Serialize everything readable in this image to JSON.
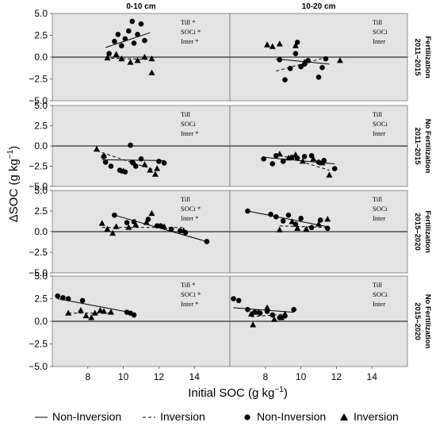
{
  "chart_data": {
    "type": "scatter",
    "xlabel": "Initial SOC (g kg",
    "xlabel_sup": "−1",
    "xlabel_end": ")",
    "ylabel": "ΔSOC (g kg",
    "ylabel_sup": "−1",
    "ylabel_end": ")",
    "xlim": [
      6,
      16
    ],
    "ylim": [
      -5.0,
      5.0
    ],
    "x_ticks": [
      "8",
      "10",
      "12",
      "14"
    ],
    "y_ticks": [
      "5.0",
      "2.5",
      "0.0",
      "−2.5",
      "−5.0"
    ],
    "columns": [
      "0-10 cm",
      "10-20 cm"
    ],
    "rows": [
      {
        "period": "2011–2015",
        "treatment": "Fertilization"
      },
      {
        "period": "2011–2015",
        "treatment": "No Fertilization"
      },
      {
        "period": "2015–2020",
        "treatment": "Fertilization"
      },
      {
        "period": "2015–2020",
        "treatment": "No Fertilization"
      }
    ],
    "legend": {
      "line_noninv": "Non-Inversion",
      "line_inv": "Inversion",
      "pt_noninv": "Non-Inversion",
      "pt_inv": "Inversion",
      "position": "bottom"
    },
    "panels": [
      {
        "row": 0,
        "col": 0,
        "stats": [
          "Till *",
          "SOCi *",
          "Inter *"
        ],
        "noninv_points": [
          [
            9.2,
            0.4
          ],
          [
            9.5,
            1.8
          ],
          [
            9.7,
            2.6
          ],
          [
            9.9,
            1.3
          ],
          [
            10.1,
            2.1
          ],
          [
            10.3,
            3.0
          ],
          [
            10.5,
            4.1
          ],
          [
            10.6,
            1.6
          ],
          [
            10.8,
            2.6
          ],
          [
            11.0,
            3.8
          ],
          [
            11.2,
            1.9
          ]
        ],
        "noninv_line": [
          [
            9.0,
            1.1
          ],
          [
            11.5,
            2.8
          ]
        ],
        "inv_points": [
          [
            9.1,
            -0.1
          ],
          [
            9.6,
            0.3
          ],
          [
            9.9,
            -0.2
          ],
          [
            10.4,
            -0.6
          ],
          [
            10.8,
            -0.4
          ],
          [
            11.2,
            0.0
          ],
          [
            11.6,
            -0.2
          ],
          [
            11.6,
            -1.8
          ]
        ],
        "inv_line": [
          [
            9.0,
            -0.1
          ],
          [
            11.7,
            -0.3
          ]
        ]
      },
      {
        "row": 0,
        "col": 1,
        "stats": [
          "Till",
          "SOCi",
          "Inter"
        ],
        "noninv_points": [
          [
            8.8,
            -0.3
          ],
          [
            9.1,
            -2.6
          ],
          [
            9.4,
            -1.3
          ],
          [
            9.7,
            0.4
          ],
          [
            9.8,
            1.7
          ],
          [
            10.0,
            -1.1
          ],
          [
            10.2,
            -0.8
          ],
          [
            10.4,
            -0.4
          ],
          [
            11.0,
            -2.3
          ],
          [
            11.2,
            -1.2
          ],
          [
            11.4,
            -0.2
          ]
        ],
        "noninv_line": [
          [
            8.6,
            -0.2
          ],
          [
            11.6,
            -0.8
          ]
        ],
        "inv_points": [
          [
            8.1,
            1.4
          ],
          [
            8.4,
            1.2
          ],
          [
            8.8,
            1.5
          ],
          [
            9.7,
            1.3
          ],
          [
            10.2,
            -0.6
          ],
          [
            12.2,
            -0.4
          ]
        ],
        "inv_line": [
          [
            8.6,
            -1.6
          ],
          [
            11.3,
            -0.1
          ]
        ]
      },
      {
        "row": 1,
        "col": 0,
        "stats": [
          "Till",
          "SOCi",
          "Inter *"
        ],
        "noninv_points": [
          [
            8.9,
            -1.3
          ],
          [
            9.0,
            -2.0
          ],
          [
            9.3,
            -2.5
          ],
          [
            9.8,
            -3.0
          ],
          [
            10.1,
            -3.2
          ],
          [
            10.4,
            0.1
          ],
          [
            10.5,
            -2.0
          ],
          [
            10.7,
            -2.5
          ],
          [
            11.0,
            -1.6
          ],
          [
            12.0,
            -1.9
          ],
          [
            12.3,
            -2.1
          ]
        ],
        "noninv_line": [
          [
            8.8,
            -1.7
          ],
          [
            12.3,
            -1.8
          ]
        ],
        "inv_points": [
          [
            8.5,
            -0.4
          ],
          [
            8.9,
            -1.2
          ],
          [
            10.0,
            -3.1
          ],
          [
            10.6,
            -2.1
          ],
          [
            11.2,
            -2.3
          ],
          [
            11.5,
            -3.0
          ],
          [
            11.8,
            -3.5
          ],
          [
            11.9,
            -2.8
          ]
        ],
        "inv_line": [
          [
            8.5,
            -0.6
          ],
          [
            11.8,
            -3.0
          ]
        ]
      },
      {
        "row": 1,
        "col": 1,
        "stats": [
          "Till",
          "SOCi",
          "Inter"
        ],
        "noninv_points": [
          [
            7.9,
            -1.6
          ],
          [
            8.4,
            -2.2
          ],
          [
            8.6,
            -1.2
          ],
          [
            9.0,
            -1.9
          ],
          [
            9.5,
            -1.4
          ],
          [
            9.8,
            -1.5
          ],
          [
            10.2,
            -1.3
          ],
          [
            10.6,
            -1.2
          ],
          [
            11.0,
            -2.0
          ],
          [
            11.3,
            -1.8
          ],
          [
            11.9,
            -2.8
          ]
        ],
        "noninv_line": [
          [
            7.9,
            -1.4
          ],
          [
            11.9,
            -2.2
          ]
        ],
        "inv_points": [
          [
            8.8,
            -1.0
          ],
          [
            9.3,
            -1.5
          ],
          [
            9.7,
            -1.1
          ],
          [
            10.1,
            -1.9
          ],
          [
            10.7,
            -1.6
          ],
          [
            11.2,
            -2.1
          ],
          [
            11.6,
            -3.6
          ]
        ],
        "inv_line": [
          [
            8.8,
            -1.1
          ],
          [
            11.6,
            -3.0
          ]
        ]
      },
      {
        "row": 2,
        "col": 0,
        "stats": [
          "Till",
          "SOCi *",
          "Inter *"
        ],
        "noninv_points": [
          [
            9.5,
            2.0
          ],
          [
            10.2,
            1.1
          ],
          [
            10.6,
            1.2
          ],
          [
            11.4,
            1.5
          ],
          [
            11.9,
            0.7
          ],
          [
            12.1,
            0.7
          ],
          [
            12.7,
            0.3
          ],
          [
            13.2,
            0.1
          ],
          [
            13.5,
            -0.1
          ],
          [
            14.7,
            -1.2
          ]
        ],
        "noninv_line": [
          [
            9.5,
            2.0
          ],
          [
            14.7,
            -1.2
          ]
        ],
        "inv_points": [
          [
            8.8,
            1.0
          ],
          [
            9.1,
            0.3
          ],
          [
            9.4,
            -0.2
          ],
          [
            9.6,
            0.6
          ],
          [
            10.3,
            0.5
          ],
          [
            10.7,
            0.8
          ],
          [
            11.3,
            1.1
          ],
          [
            11.6,
            2.2
          ],
          [
            12.3,
            0.6
          ],
          [
            13.4,
            0.1
          ]
        ],
        "inv_line": [
          [
            8.8,
            0.5
          ],
          [
            13.4,
            0.5
          ]
        ]
      },
      {
        "row": 2,
        "col": 1,
        "stats": [
          "Till",
          "SOCi",
          "Inter"
        ],
        "noninv_points": [
          [
            7.0,
            2.5
          ],
          [
            8.3,
            2.1
          ],
          [
            8.6,
            1.8
          ],
          [
            9.0,
            1.3
          ],
          [
            9.3,
            2.0
          ],
          [
            9.7,
            0.9
          ],
          [
            10.0,
            1.6
          ],
          [
            10.6,
            0.5
          ],
          [
            11.1,
            1.4
          ],
          [
            11.5,
            0.4
          ]
        ],
        "noninv_line": [
          [
            7.0,
            2.5
          ],
          [
            11.5,
            0.6
          ]
        ],
        "inv_points": [
          [
            8.8,
            0.2
          ],
          [
            9.5,
            1.2
          ],
          [
            9.8,
            0.4
          ],
          [
            10.3,
            0.3
          ],
          [
            11.0,
            0.9
          ],
          [
            11.5,
            1.5
          ]
        ],
        "inv_line": [
          [
            8.8,
            0.7
          ],
          [
            11.6,
            0.5
          ]
        ]
      },
      {
        "row": 3,
        "col": 0,
        "stats": [
          "Till *",
          "SOCi *",
          "Inter *"
        ],
        "noninv_points": [
          [
            6.3,
            2.8
          ],
          [
            6.6,
            2.6
          ],
          [
            6.9,
            2.5
          ],
          [
            7.7,
            2.3
          ],
          [
            10.2,
            1.0
          ],
          [
            10.4,
            0.9
          ],
          [
            10.6,
            0.7
          ]
        ],
        "noninv_line": [
          [
            6.3,
            2.5
          ],
          [
            10.6,
            0.9
          ]
        ],
        "inv_points": [
          [
            6.9,
            0.9
          ],
          [
            7.6,
            1.2
          ],
          [
            7.9,
            0.6
          ],
          [
            8.2,
            0.4
          ],
          [
            8.4,
            0.9
          ],
          [
            8.7,
            1.2
          ],
          [
            8.9,
            1.1
          ],
          [
            9.3,
            1.0
          ]
        ],
        "inv_line": [
          [
            6.9,
            0.9
          ],
          [
            9.3,
            0.9
          ]
        ]
      },
      {
        "row": 3,
        "col": 1,
        "stats": [
          "Till",
          "SOCi",
          "Inter"
        ],
        "noninv_points": [
          [
            6.2,
            2.5
          ],
          [
            6.5,
            2.3
          ],
          [
            7.0,
            1.3
          ],
          [
            7.4,
            1.0
          ],
          [
            7.7,
            0.9
          ],
          [
            8.1,
            1.1
          ],
          [
            8.4,
            0.7
          ],
          [
            8.8,
            0.4
          ],
          [
            9.1,
            0.6
          ],
          [
            9.6,
            1.3
          ]
        ],
        "noninv_line": [
          [
            6.2,
            1.5
          ],
          [
            9.6,
            1.0
          ]
        ],
        "inv_points": [
          [
            7.2,
            0.8
          ],
          [
            7.3,
            -0.4
          ],
          [
            7.6,
            1.0
          ],
          [
            8.1,
            1.5
          ],
          [
            8.5,
            0.2
          ],
          [
            8.9,
            0.4
          ],
          [
            9.1,
            0.8
          ]
        ],
        "inv_line": [
          [
            7.2,
            0.5
          ],
          [
            9.1,
            0.8
          ]
        ]
      }
    ]
  }
}
